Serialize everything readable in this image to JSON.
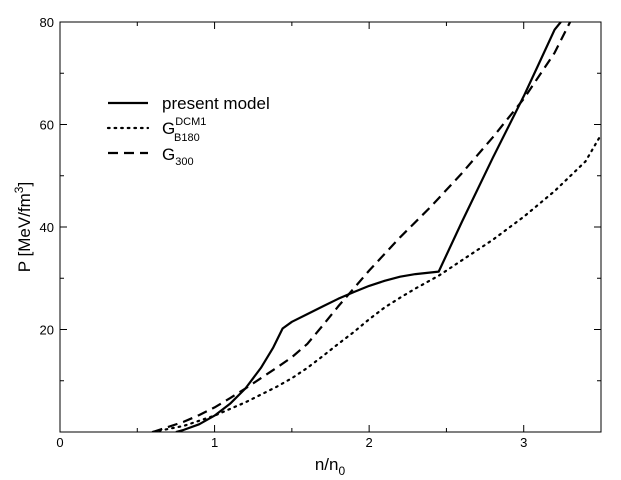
{
  "chart_data": {
    "type": "line",
    "xlabel": {
      "base": "n/n",
      "sub": "0"
    },
    "ylabel": {
      "base": "P [MeV/fm",
      "sup": "3",
      "end": "]"
    },
    "xlim": [
      0,
      3.5
    ],
    "ylim": [
      0,
      80
    ],
    "xticks": [
      0,
      1,
      2,
      3
    ],
    "yticks": [
      20,
      40,
      60,
      80
    ],
    "legend_position": "upper-left",
    "series": [
      {
        "name": "present model",
        "style": "solid",
        "x": [
          0.75,
          0.8,
          0.9,
          1.0,
          1.1,
          1.2,
          1.3,
          1.38,
          1.44,
          1.5,
          1.6,
          1.7,
          1.8,
          1.9,
          2.0,
          2.1,
          2.2,
          2.3,
          2.45,
          2.6,
          2.8,
          3.0,
          3.1,
          3.2,
          3.24
        ],
        "y": [
          0,
          0.4,
          1.5,
          3.2,
          5.5,
          8.5,
          12.5,
          16.5,
          20.2,
          21.5,
          23.0,
          24.5,
          26.0,
          27.3,
          28.5,
          29.5,
          30.3,
          30.8,
          31.3,
          41.0,
          53.5,
          65.5,
          72.0,
          78.5,
          80.0
        ]
      },
      {
        "name": "G_B180^DCM1",
        "legend_base": "G",
        "legend_sup": "DCM1",
        "legend_sub": "B180",
        "style": "dotted",
        "x": [
          0.6,
          0.8,
          1.0,
          1.2,
          1.4,
          1.5,
          1.6,
          1.7,
          1.8,
          1.9,
          2.0,
          2.1,
          2.2,
          2.3,
          2.45,
          2.6,
          2.8,
          3.0,
          3.2,
          3.4,
          3.5
        ],
        "y": [
          0,
          1.2,
          3.2,
          5.8,
          8.8,
          10.5,
          12.5,
          14.8,
          17.2,
          19.5,
          22.0,
          24.3,
          26.2,
          28.0,
          30.5,
          33.5,
          37.5,
          42.0,
          47.0,
          52.8,
          58.0
        ]
      },
      {
        "name": "G_300",
        "legend_base": "G",
        "legend_sub": "300",
        "style": "dashed",
        "x": [
          0.6,
          0.7,
          0.8,
          0.9,
          1.0,
          1.1,
          1.2,
          1.3,
          1.4,
          1.5,
          1.6,
          1.7,
          1.8,
          1.9,
          2.0,
          2.2,
          2.4,
          2.6,
          2.8,
          3.0,
          3.2,
          3.3
        ],
        "y": [
          0,
          1.0,
          2.0,
          3.3,
          4.8,
          6.6,
          8.5,
          10.5,
          12.5,
          14.6,
          17.2,
          20.8,
          24.5,
          28.0,
          31.5,
          38.0,
          44.0,
          50.5,
          57.5,
          65.0,
          74.0,
          80.0
        ]
      }
    ]
  }
}
